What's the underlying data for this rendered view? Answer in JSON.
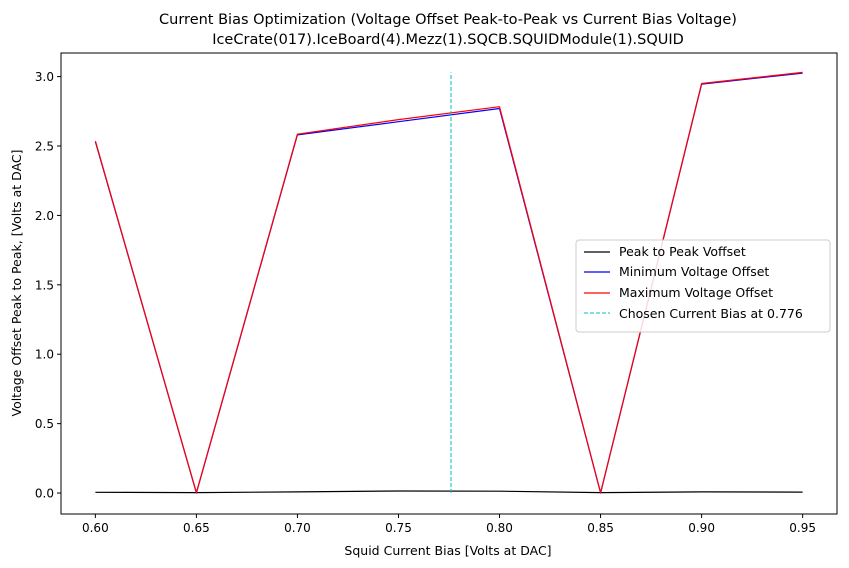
{
  "chart_data": {
    "type": "line",
    "title_line1": "Current Bias Optimization (Voltage Offset Peak-to-Peak vs Current Bias Voltage)",
    "title_line2": "IceCrate(017).IceBoard(4).Mezz(1).SQCB.SQUIDModule(1).SQUID",
    "xlabel": "Squid Current Bias [Volts at DAC]",
    "ylabel": "Voltage Offset Peak to Peak, [Volts at DAC]",
    "xlim": [
      0.583,
      0.967
    ],
    "ylim": [
      -0.151,
      3.17
    ],
    "xticks": [
      0.6,
      0.65,
      0.7,
      0.75,
      0.8,
      0.85,
      0.9,
      0.95
    ],
    "yticks": [
      0.0,
      0.5,
      1.0,
      1.5,
      2.0,
      2.5,
      3.0
    ],
    "grid": false,
    "legend_position": "center-right",
    "x": [
      0.6,
      0.65,
      0.7,
      0.75,
      0.8,
      0.85,
      0.9,
      0.95
    ],
    "series": [
      {
        "name": "Peak to Peak Voffset",
        "color": "#000000",
        "style": "solid",
        "values": [
          0.005,
          0.003,
          0.008,
          0.015,
          0.013,
          0.003,
          0.008,
          0.007
        ]
      },
      {
        "name": "Minimum Voltage Offset",
        "color": "#0000ff",
        "style": "solid",
        "values": [
          2.53,
          0.0,
          2.58,
          2.675,
          2.77,
          0.0,
          2.945,
          3.025
        ]
      },
      {
        "name": "Maximum Voltage Offset",
        "color": "#ff0000",
        "style": "solid",
        "values": [
          2.535,
          0.003,
          2.585,
          2.69,
          2.783,
          0.003,
          2.95,
          3.03
        ]
      }
    ],
    "vline": {
      "name": "Chosen Current Bias at 0.776",
      "x": 0.776,
      "y_range": [
        0.0,
        3.03
      ],
      "color": "#00bfbf",
      "style": "dashed"
    }
  }
}
